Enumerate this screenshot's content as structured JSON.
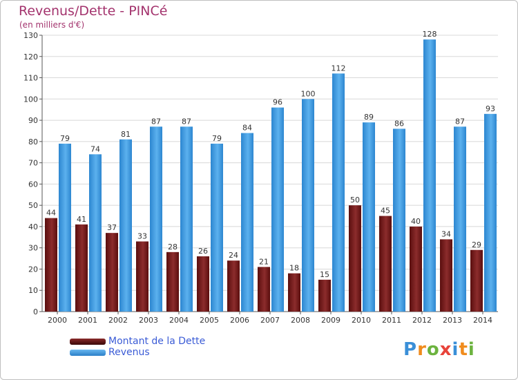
{
  "title": "Revenus/Dette - PINCé",
  "subtitle": "(en milliers d'€)",
  "chart_data": {
    "type": "bar",
    "categories": [
      "2000",
      "2001",
      "2002",
      "2003",
      "2004",
      "2005",
      "2006",
      "2007",
      "2008",
      "2009",
      "2010",
      "2011",
      "2012",
      "2013",
      "2014"
    ],
    "series": [
      {
        "name": "Montant de la Dette",
        "values": [
          44,
          41,
          37,
          33,
          28,
          26,
          24,
          21,
          18,
          15,
          50,
          45,
          40,
          34,
          29
        ],
        "color": "#7a1c1c"
      },
      {
        "name": "Revenus",
        "values": [
          79,
          74,
          81,
          87,
          87,
          79,
          84,
          96,
          100,
          112,
          89,
          86,
          128,
          87,
          93
        ],
        "color": "#3fa0e6"
      }
    ],
    "ylim": [
      0,
      130
    ],
    "yticks": [
      0,
      10,
      20,
      30,
      40,
      50,
      60,
      70,
      80,
      90,
      100,
      110,
      120,
      130
    ],
    "grid": true,
    "legend_position": "bottom-left"
  },
  "legend": [
    {
      "label": "Montant de la Dette",
      "color": "#7a1c1c"
    },
    {
      "label": "Revenus",
      "color": "#3fa0e6"
    }
  ],
  "logo": {
    "text": "Proxiti",
    "letter_colors": [
      "#3a8fd8",
      "#f08c1e",
      "#6cb33f",
      "#e8433a",
      "#3a8fd8",
      "#f08c1e",
      "#6cb33f"
    ]
  }
}
